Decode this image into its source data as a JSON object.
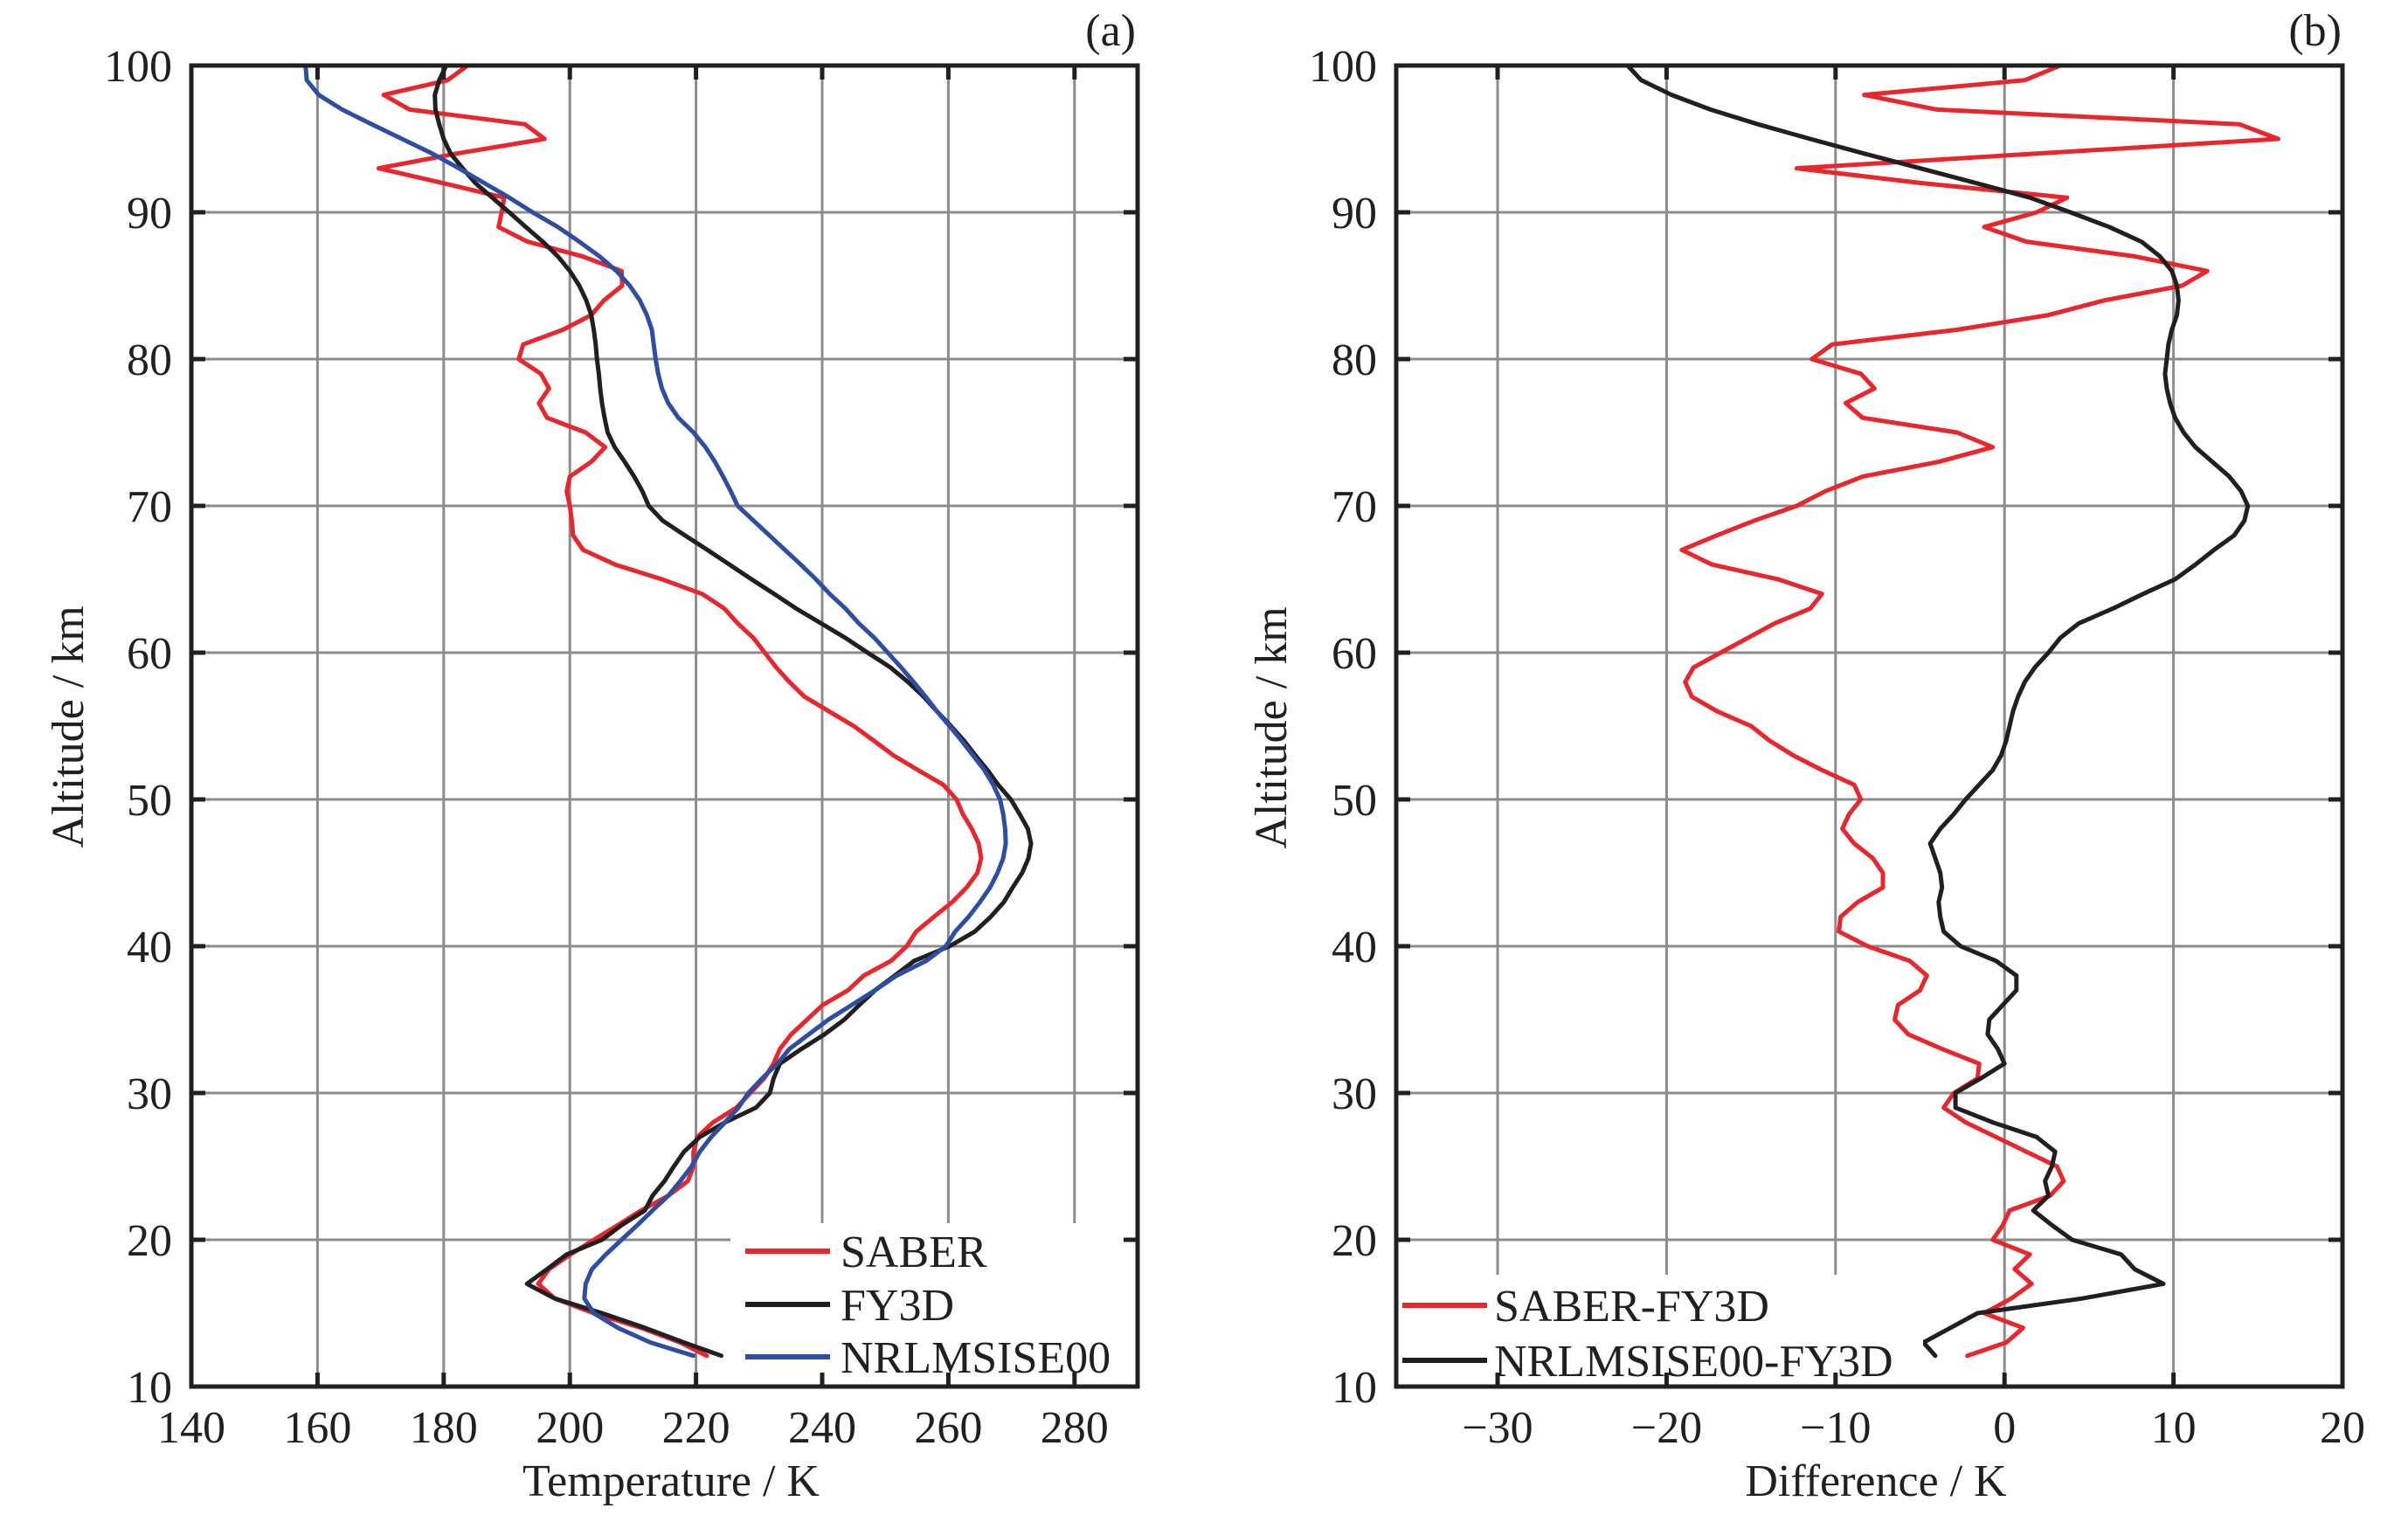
{
  "chart_data": [
    {
      "panel_label": "(a)",
      "type": "line",
      "orientation": "vertical-profile",
      "xlabel": "Temperature / K",
      "ylabel": "Altitude / km",
      "xlim": [
        140,
        290
      ],
      "ylim": [
        10,
        100
      ],
      "xticks": [
        140,
        160,
        180,
        200,
        220,
        240,
        260,
        280
      ],
      "xtick_labels": [
        "140",
        "160",
        "180",
        "200",
        "220",
        "240",
        "260",
        "280"
      ],
      "yticks": [
        10,
        20,
        30,
        40,
        50,
        60,
        70,
        80,
        90,
        100
      ],
      "ytick_labels": [
        "10",
        "20",
        "30",
        "40",
        "50",
        "60",
        "70",
        "80",
        "90",
        "100"
      ],
      "grid": true,
      "legend_position": "bottom-right",
      "altitude": [
        100,
        99,
        98,
        97,
        96,
        95,
        94,
        93,
        92,
        91,
        90,
        89,
        88,
        87,
        86,
        85,
        84,
        83,
        82,
        81,
        80,
        79,
        78,
        77,
        76,
        75,
        74,
        73,
        72,
        71,
        70,
        69,
        68,
        67,
        66,
        65,
        64,
        63,
        62,
        61,
        60,
        59,
        58,
        57,
        56,
        55,
        54,
        53,
        52,
        51,
        50,
        49,
        48,
        47,
        46,
        45,
        44,
        43,
        42,
        41,
        40,
        39,
        38,
        37,
        36,
        35,
        34,
        33,
        32,
        31,
        30,
        29,
        28,
        27,
        26,
        25,
        24,
        23,
        22,
        21,
        20,
        19,
        18,
        17,
        16,
        15,
        14,
        13,
        12.1
      ],
      "series": [
        {
          "name": "SABER",
          "color": "#e8262b",
          "values": [
            183.8,
            180.6,
            170.5,
            174.6,
            192.9,
            196.0,
            182.0,
            169.7,
            179.8,
            189.6,
            189.2,
            188.7,
            193.3,
            202.0,
            208.2,
            208.3,
            205.4,
            203.4,
            198.9,
            192.6,
            191.9,
            195.4,
            196.7,
            195.1,
            196.4,
            202.5,
            205.6,
            203.4,
            200.0,
            199.5,
            200.0,
            200.3,
            200.5,
            202.1,
            207.2,
            214.6,
            221.0,
            224.5,
            226.6,
            229.1,
            230.9,
            232.7,
            234.8,
            237.2,
            241.1,
            245.0,
            248.2,
            251.3,
            255.2,
            259.2,
            261.3,
            262.3,
            263.7,
            264.8,
            265.2,
            264.6,
            262.9,
            260.6,
            257.7,
            254.9,
            253.4,
            250.9,
            246.6,
            244.1,
            240.1,
            237.6,
            235.1,
            233.3,
            232.3,
            230.8,
            228.6,
            226.4,
            222.7,
            220.2,
            219.6,
            219.6,
            218.7,
            215.6,
            211.3,
            207.6,
            203.8,
            200.1,
            196.7,
            195.0,
            197.6,
            203.8,
            211.3,
            217.5,
            221.7
          ]
        },
        {
          "name": "FY3D",
          "color": "#231f20",
          "values": [
            180.4,
            179.3,
            178.6,
            178.7,
            179.3,
            180.0,
            181.1,
            183.0,
            185.0,
            187.7,
            190.4,
            193.0,
            195.7,
            198.1,
            200.0,
            201.5,
            202.6,
            203.4,
            203.8,
            204.1,
            204.3,
            204.6,
            204.8,
            205.1,
            205.5,
            206.0,
            207.1,
            208.7,
            210.2,
            211.5,
            212.5,
            214.7,
            218.2,
            221.8,
            225.3,
            228.8,
            232.4,
            235.9,
            239.8,
            243.7,
            247.2,
            250.8,
            253.6,
            256.1,
            258.2,
            260.4,
            262.5,
            264.3,
            266.2,
            267.9,
            269.9,
            271.3,
            272.6,
            273.1,
            272.7,
            271.7,
            270.2,
            268.8,
            266.7,
            264.2,
            260.2,
            254.6,
            251.5,
            248.4,
            245.9,
            243.5,
            240.4,
            236.7,
            233.3,
            232.3,
            231.7,
            229.5,
            224.6,
            220.6,
            218.1,
            216.5,
            215.0,
            213.1,
            211.9,
            208.2,
            205.1,
            199.5,
            196.4,
            193.2,
            197.6,
            205.1,
            211.9,
            218.1,
            224.0
          ]
        },
        {
          "name": "NRLMSISE00",
          "color": "#2e4ea3",
          "values": [
            158.1,
            158.3,
            160.2,
            163.9,
            168.6,
            173.4,
            178.2,
            182.4,
            186.4,
            190.4,
            194.1,
            198.1,
            201.5,
            204.7,
            207.4,
            209.5,
            211.1,
            212.2,
            213.0,
            213.3,
            213.6,
            214.0,
            214.6,
            215.6,
            217.2,
            219.6,
            221.5,
            223.0,
            224.3,
            225.5,
            226.6,
            229.1,
            231.6,
            234.1,
            236.6,
            239.0,
            241.2,
            243.7,
            245.8,
            248.3,
            250.4,
            252.5,
            254.5,
            256.4,
            258.2,
            260.2,
            262.1,
            263.9,
            265.7,
            267.1,
            268.2,
            268.7,
            269.0,
            269.1,
            268.7,
            267.8,
            266.6,
            265.0,
            263.2,
            261.1,
            259.6,
            256.5,
            251.8,
            248.4,
            244.7,
            241.0,
            237.9,
            234.8,
            232.9,
            230.5,
            228.3,
            226.7,
            224.6,
            222.4,
            220.6,
            219.3,
            217.5,
            215.6,
            213.1,
            210.7,
            208.2,
            205.7,
            203.5,
            202.5,
            202.3,
            203.8,
            207.6,
            212.8,
            219.6
          ]
        }
      ]
    },
    {
      "panel_label": "(b)",
      "type": "line",
      "orientation": "vertical-profile",
      "xlabel": "Difference / K",
      "ylabel": "Altitude / km",
      "xlim": [
        -36,
        20
      ],
      "ylim": [
        10,
        100
      ],
      "xticks": [
        -30,
        -20,
        -10,
        0,
        10,
        20
      ],
      "xtick_labels": [
        "−30",
        "−20",
        "−10",
        "0",
        "10",
        "20"
      ],
      "yticks": [
        10,
        20,
        30,
        40,
        50,
        60,
        70,
        80,
        90,
        100
      ],
      "ytick_labels": [
        "10",
        "20",
        "30",
        "40",
        "50",
        "60",
        "70",
        "80",
        "90",
        "100"
      ],
      "grid": true,
      "legend_position": "bottom-left",
      "altitude": [
        100,
        99,
        98,
        97,
        96,
        95,
        94,
        93,
        92,
        91,
        90,
        89,
        88,
        87,
        86,
        85,
        84,
        83,
        82,
        81,
        80,
        79,
        78,
        77,
        76,
        75,
        74,
        73,
        72,
        71,
        70,
        69,
        68,
        67,
        66,
        65,
        64,
        63,
        62,
        61,
        60,
        59,
        58,
        57,
        56,
        55,
        54,
        53,
        52,
        51,
        50,
        49,
        48,
        47,
        46,
        45,
        44,
        43,
        42,
        41,
        40,
        39,
        38,
        37,
        36,
        35,
        34,
        33,
        32,
        31,
        30,
        29,
        28,
        27,
        26,
        25,
        24,
        23,
        22,
        21,
        20,
        19,
        18,
        17,
        16,
        15,
        14,
        13,
        12.1
      ],
      "series": [
        {
          "name": "SABER-FY3D",
          "color": "#e8262b",
          "values": [
            3.3,
            1.2,
            -8.3,
            -4.0,
            13.9,
            16.2,
            1.9,
            -12.3,
            -5.0,
            3.7,
            1.9,
            -1.2,
            1.3,
            7.7,
            12.0,
            10.5,
            5.9,
            2.6,
            -2.8,
            -10.2,
            -11.4,
            -8.5,
            -7.7,
            -9.4,
            -8.4,
            -2.8,
            -0.7,
            -3.9,
            -8.4,
            -10.6,
            -12.3,
            -14.8,
            -17.0,
            -19.1,
            -17.3,
            -13.4,
            -10.8,
            -11.5,
            -13.6,
            -15.2,
            -16.8,
            -18.4,
            -18.9,
            -18.5,
            -17.0,
            -15.0,
            -13.9,
            -12.5,
            -10.8,
            -8.9,
            -8.5,
            -9.2,
            -9.6,
            -8.9,
            -7.8,
            -7.2,
            -7.2,
            -8.7,
            -9.7,
            -9.8,
            -8.1,
            -5.6,
            -4.6,
            -5.0,
            -6.3,
            -6.5,
            -5.7,
            -3.7,
            -1.5,
            -1.6,
            -3.0,
            -3.6,
            -2.3,
            -0.5,
            1.3,
            3.1,
            3.5,
            2.7,
            0.3,
            -0.1,
            -0.7,
            1.5,
            0.6,
            1.6,
            0.4,
            -1.2,
            1.1,
            0.1,
            -2.2
          ]
        },
        {
          "name": "NRLMSISE00-FY3D",
          "color": "#231f20",
          "values": [
            -22.3,
            -21.5,
            -19.7,
            -17.4,
            -14.6,
            -11.5,
            -8.3,
            -5.0,
            -1.7,
            1.5,
            3.9,
            6.2,
            8.1,
            9.2,
            9.9,
            10.2,
            10.3,
            10.2,
            9.9,
            9.7,
            9.6,
            9.5,
            9.6,
            9.8,
            10.1,
            10.6,
            11.3,
            12.3,
            13.3,
            14.0,
            14.4,
            14.2,
            13.6,
            12.4,
            11.3,
            10.1,
            8.2,
            6.4,
            4.4,
            3.3,
            2.6,
            1.8,
            1.2,
            0.8,
            0.5,
            0.3,
            0.1,
            -0.2,
            -0.7,
            -1.5,
            -2.3,
            -3.0,
            -3.8,
            -4.4,
            -4.1,
            -3.8,
            -3.7,
            -3.9,
            -3.8,
            -3.6,
            -2.6,
            -0.5,
            0.7,
            0.7,
            -0.1,
            -0.9,
            -1.0,
            -0.4,
            0.0,
            -1.4,
            -2.9,
            -2.9,
            -0.7,
            1.9,
            3.0,
            2.8,
            2.4,
            2.6,
            1.7,
            2.8,
            4.0,
            6.9,
            7.7,
            9.4,
            4.6,
            -1.6,
            -3.2,
            -4.8,
            -4.1
          ]
        }
      ]
    }
  ]
}
